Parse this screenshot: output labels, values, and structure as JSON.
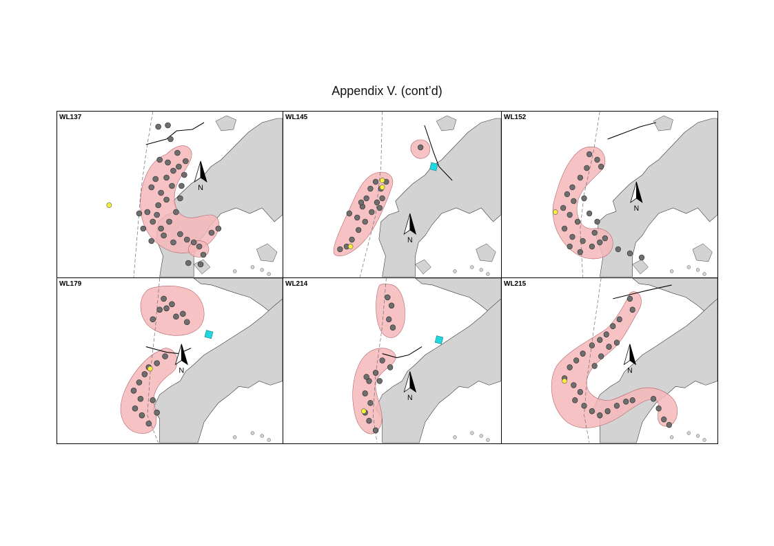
{
  "page": {
    "title": "Appendix V.  (cont’d)"
  },
  "north_label": "N",
  "colors": {
    "land": "#d3d3d3",
    "range": "#f6b7b9",
    "range_outline": "#b06068",
    "sighting": "#6e6e6e",
    "sighting_highlight": "#f7ef3a",
    "marker": "#22d6e0"
  },
  "panels": [
    {
      "id": "WL137",
      "label": "WL137"
    },
    {
      "id": "WL145",
      "label": "WL145"
    },
    {
      "id": "WL152",
      "label": "WL152"
    },
    {
      "id": "WL179",
      "label": "WL179"
    },
    {
      "id": "WL214",
      "label": "WL214"
    },
    {
      "id": "WL215",
      "label": "WL215"
    }
  ]
}
